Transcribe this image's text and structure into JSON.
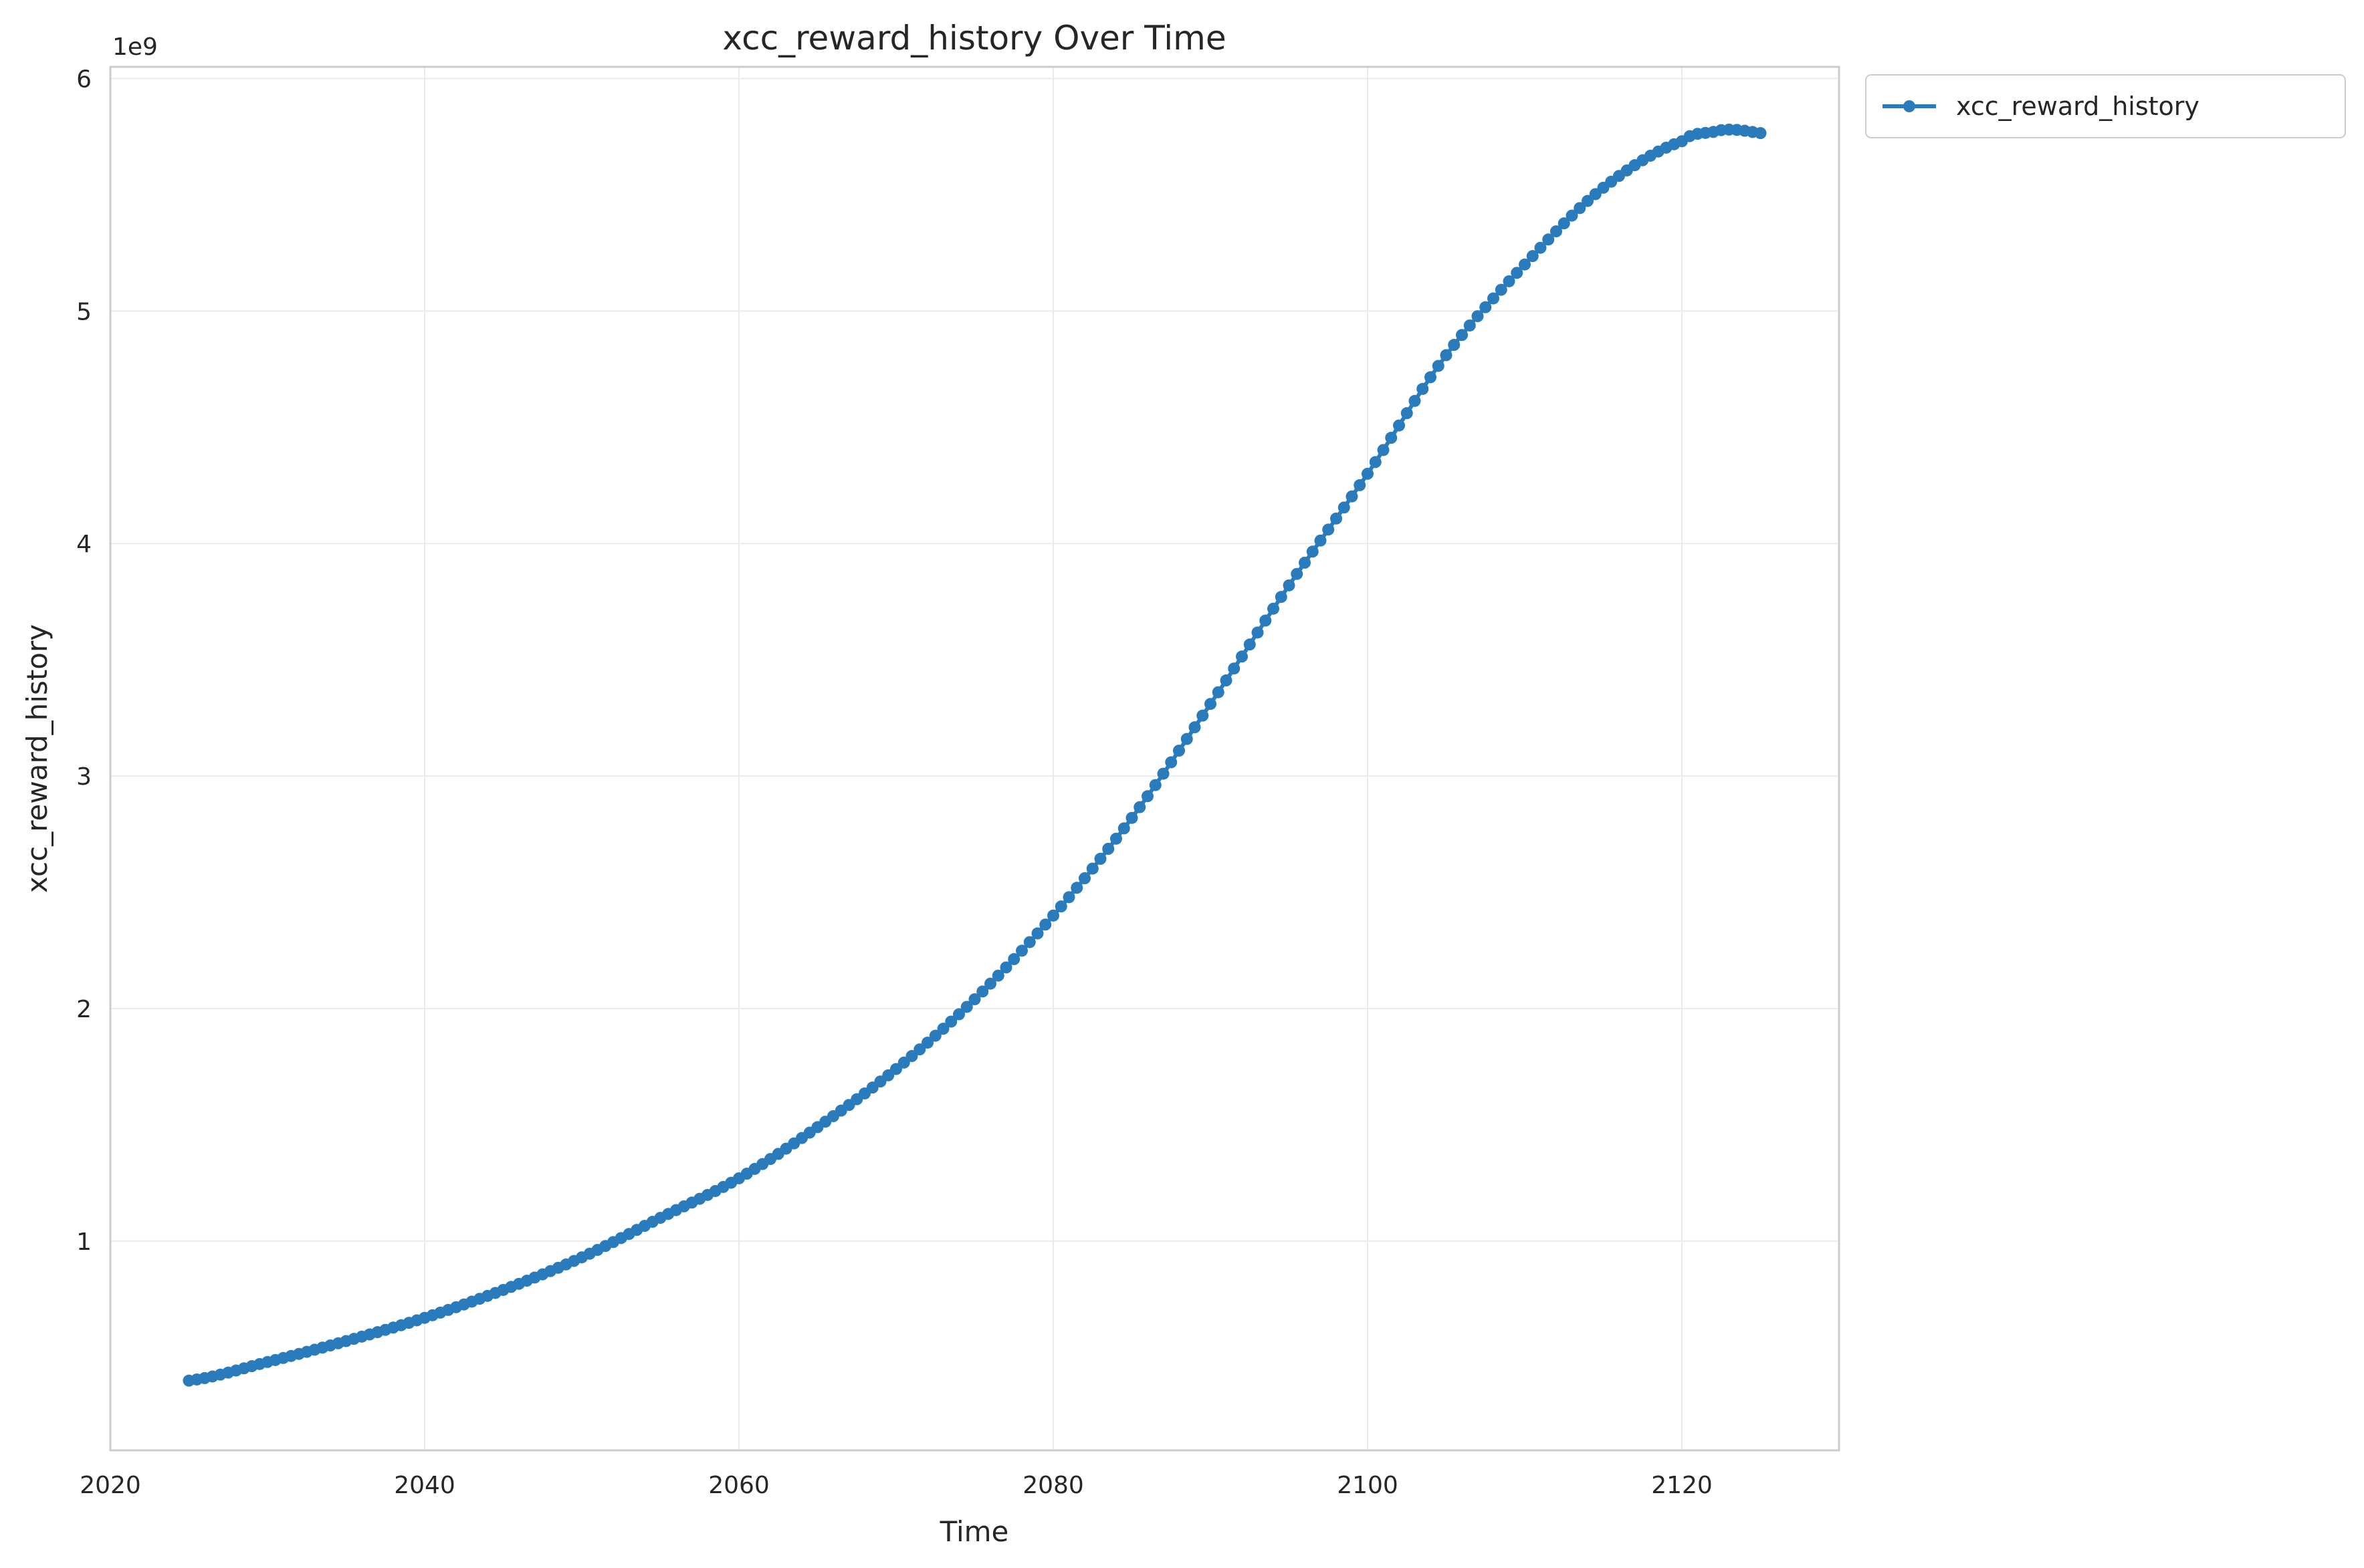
{
  "chart_data": {
    "type": "line",
    "title": "xcc_reward_history Over Time",
    "xlabel": "Time",
    "ylabel": "xcc_reward_history",
    "y_offset_label": "1e9",
    "xlim": [
      2020,
      2130
    ],
    "ylim": [
      0.1,
      6.05
    ],
    "x_ticks": [
      2020,
      2040,
      2060,
      2080,
      2100,
      2120
    ],
    "x_tick_labels": [
      "2020",
      "2040",
      "2060",
      "2080",
      "2100",
      "2120"
    ],
    "y_ticks": [
      1,
      2,
      3,
      4,
      5,
      6
    ],
    "y_tick_labels": [
      "1",
      "2",
      "3",
      "4",
      "5",
      "6"
    ],
    "grid": true,
    "legend": "outside-top-right",
    "series": [
      {
        "name": "xcc_reward_history",
        "color": "#2a7bbb",
        "marker": "circle",
        "x_start": 2025,
        "x_step": 0.5,
        "anchors": [
          [
            2025,
            0.4
          ],
          [
            2030,
            0.48
          ],
          [
            2035,
            0.57
          ],
          [
            2040,
            0.67
          ],
          [
            2045,
            0.79
          ],
          [
            2050,
            0.93
          ],
          [
            2055,
            1.1
          ],
          [
            2060,
            1.27
          ],
          [
            2065,
            1.49
          ],
          [
            2070,
            1.74
          ],
          [
            2075,
            2.04
          ],
          [
            2080,
            2.4
          ],
          [
            2085,
            2.82
          ],
          [
            2090,
            3.31
          ],
          [
            2095,
            3.82
          ],
          [
            2100,
            4.3
          ],
          [
            2105,
            4.81
          ],
          [
            2110,
            5.2
          ],
          [
            2115,
            5.53
          ],
          [
            2120,
            5.73
          ],
          [
            2122,
            5.77
          ],
          [
            2123,
            5.78
          ],
          [
            2124,
            5.775
          ],
          [
            2125,
            5.765
          ]
        ]
      }
    ]
  }
}
